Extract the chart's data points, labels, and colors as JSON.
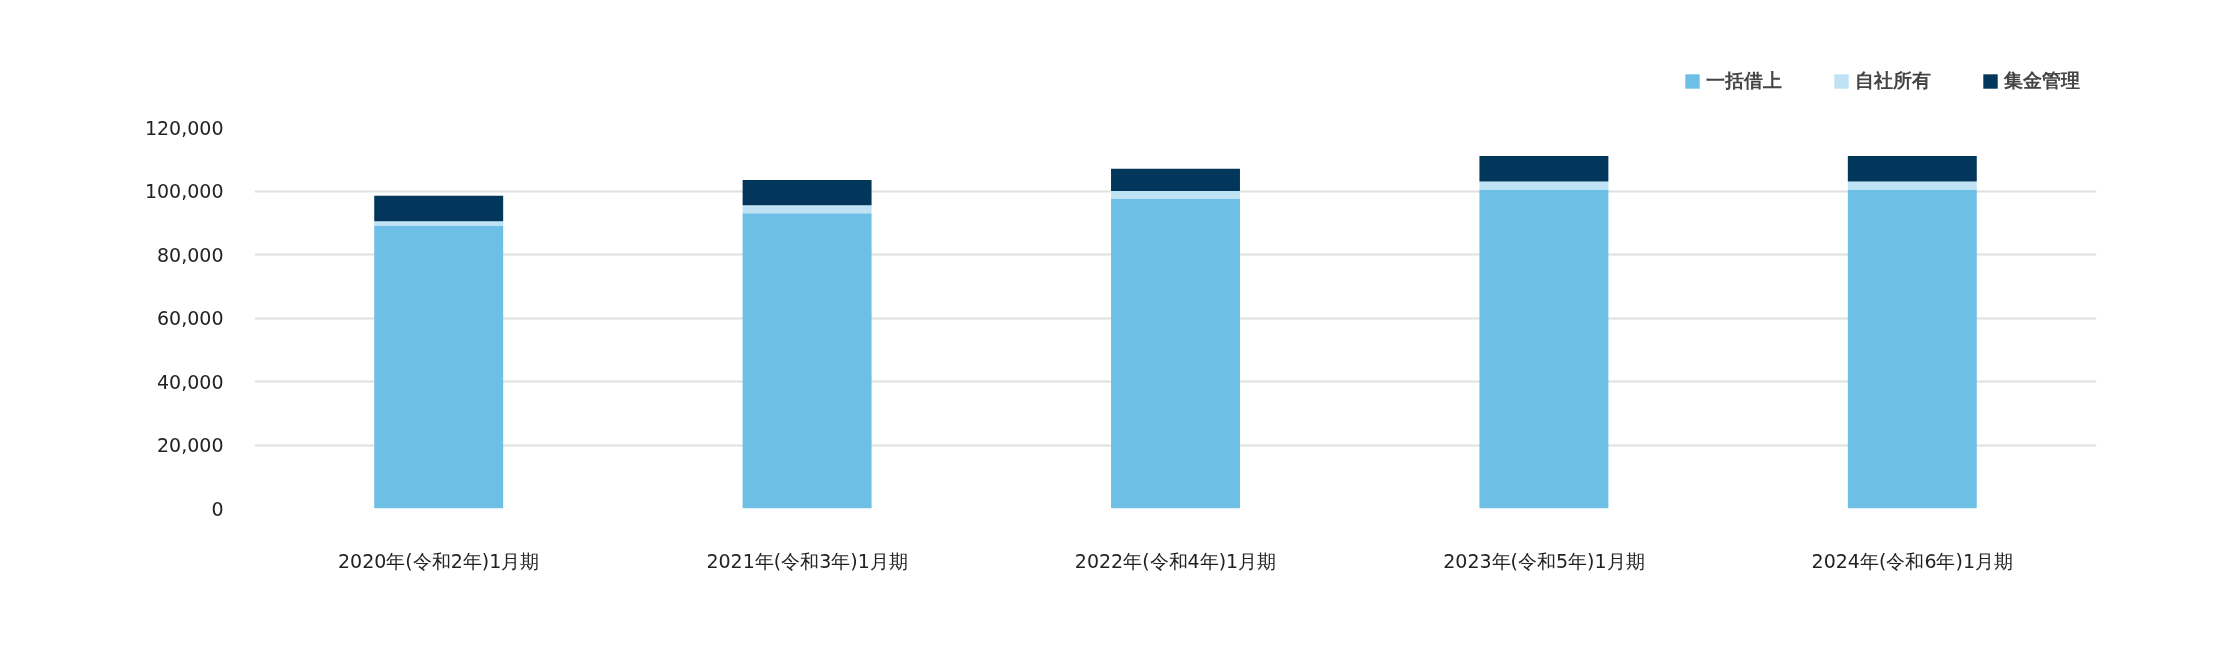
{
  "chart_data": {
    "type": "bar",
    "stacked": true,
    "categories": [
      "2020年(令和2年)1月期",
      "2021年(令和3年)1月期",
      "2022年(令和4年)1月期",
      "2023年(令和5年)1月期",
      "2024年(令和6年)1月期"
    ],
    "series": [
      {
        "name": "一括借上",
        "color": "#6dbfe5",
        "values": [
          89000,
          93000,
          97500,
          100500,
          100500
        ]
      },
      {
        "name": "自社所有",
        "color": "#bfe3f5",
        "values": [
          1500,
          2500,
          2500,
          2500,
          2500
        ]
      },
      {
        "name": "集金管理",
        "color": "#02375b",
        "values": [
          8000,
          8000,
          7000,
          8000,
          8000
        ]
      }
    ],
    "ylim": [
      0,
      120000
    ],
    "yticks": [
      {
        "value": 0,
        "label": "0"
      },
      {
        "value": 20000,
        "label": "20,000"
      },
      {
        "value": 40000,
        "label": "40,000"
      },
      {
        "value": 60000,
        "label": "60,000"
      },
      {
        "value": 80000,
        "label": "80,000"
      },
      {
        "value": 100000,
        "label": "100,000"
      },
      {
        "value": 120000,
        "label": "120,000"
      }
    ],
    "grid": "y",
    "legend": "top right"
  }
}
